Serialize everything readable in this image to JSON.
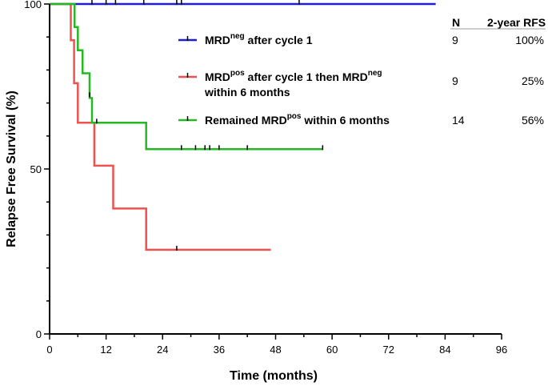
{
  "chart_data": {
    "type": "line",
    "subtype": "kaplan-meier-step",
    "xlabel": "Time (months)",
    "ylabel": "Relapse Free Survival (%)",
    "xlim": [
      0,
      96
    ],
    "ylim": [
      0,
      100
    ],
    "xticks": [
      0,
      12,
      24,
      36,
      48,
      60,
      72,
      84,
      96
    ],
    "yticks": [
      0,
      50,
      100
    ],
    "table_headers": {
      "n": "N",
      "rfs": "2-year RFS"
    },
    "series": [
      {
        "name": "MRD neg after cycle 1",
        "legend_parts": [
          "MRD",
          "neg",
          " after cycle 1"
        ],
        "legend_line2": "",
        "color": "#1f1fd1",
        "n": "9",
        "rfs": "100%",
        "steps": [
          [
            0,
            100
          ],
          [
            82,
            100
          ]
        ],
        "censors": [
          [
            9,
            100
          ],
          [
            12,
            100
          ],
          [
            14,
            100
          ],
          [
            20,
            100
          ],
          [
            27,
            100
          ],
          [
            28,
            100
          ],
          [
            53,
            100
          ]
        ]
      },
      {
        "name": "MRD pos after cycle 1 then MRD neg within 6 months",
        "legend_parts": [
          "MRD",
          "pos",
          " after cycle 1 then MRD",
          "neg"
        ],
        "legend_line2": "within 6 months",
        "color": "#f0504f",
        "n": "9",
        "rfs": "25%",
        "steps": [
          [
            0,
            100
          ],
          [
            4.5,
            100
          ],
          [
            4.5,
            89
          ],
          [
            5.2,
            89
          ],
          [
            5.2,
            76
          ],
          [
            6,
            76
          ],
          [
            6,
            64
          ],
          [
            9.5,
            64
          ],
          [
            9.5,
            51
          ],
          [
            13.5,
            51
          ],
          [
            13.5,
            38
          ],
          [
            20.5,
            38
          ],
          [
            20.5,
            25.5
          ],
          [
            47,
            25.5
          ]
        ],
        "censors": [
          [
            27,
            25.5
          ]
        ]
      },
      {
        "name": "Remained MRD pos within 6 months",
        "legend_parts": [
          "Remained MRD",
          "pos",
          " within 6 months"
        ],
        "legend_line2": "",
        "color": "#22b922",
        "n": "14",
        "rfs": "56%",
        "steps": [
          [
            0,
            100
          ],
          [
            5.3,
            100
          ],
          [
            5.3,
            93
          ],
          [
            6,
            93
          ],
          [
            6,
            86
          ],
          [
            7,
            86
          ],
          [
            7,
            79
          ],
          [
            8.5,
            79
          ],
          [
            8.5,
            71.5
          ],
          [
            9,
            71.5
          ],
          [
            9,
            64
          ],
          [
            20.5,
            64
          ],
          [
            20.5,
            56
          ],
          [
            58,
            56
          ]
        ],
        "censors": [
          [
            8.5,
            72
          ],
          [
            10,
            64
          ],
          [
            28,
            56
          ],
          [
            31,
            56
          ],
          [
            33,
            56
          ],
          [
            34,
            56
          ],
          [
            36,
            56
          ],
          [
            42,
            56
          ],
          [
            58,
            56
          ]
        ]
      }
    ]
  }
}
